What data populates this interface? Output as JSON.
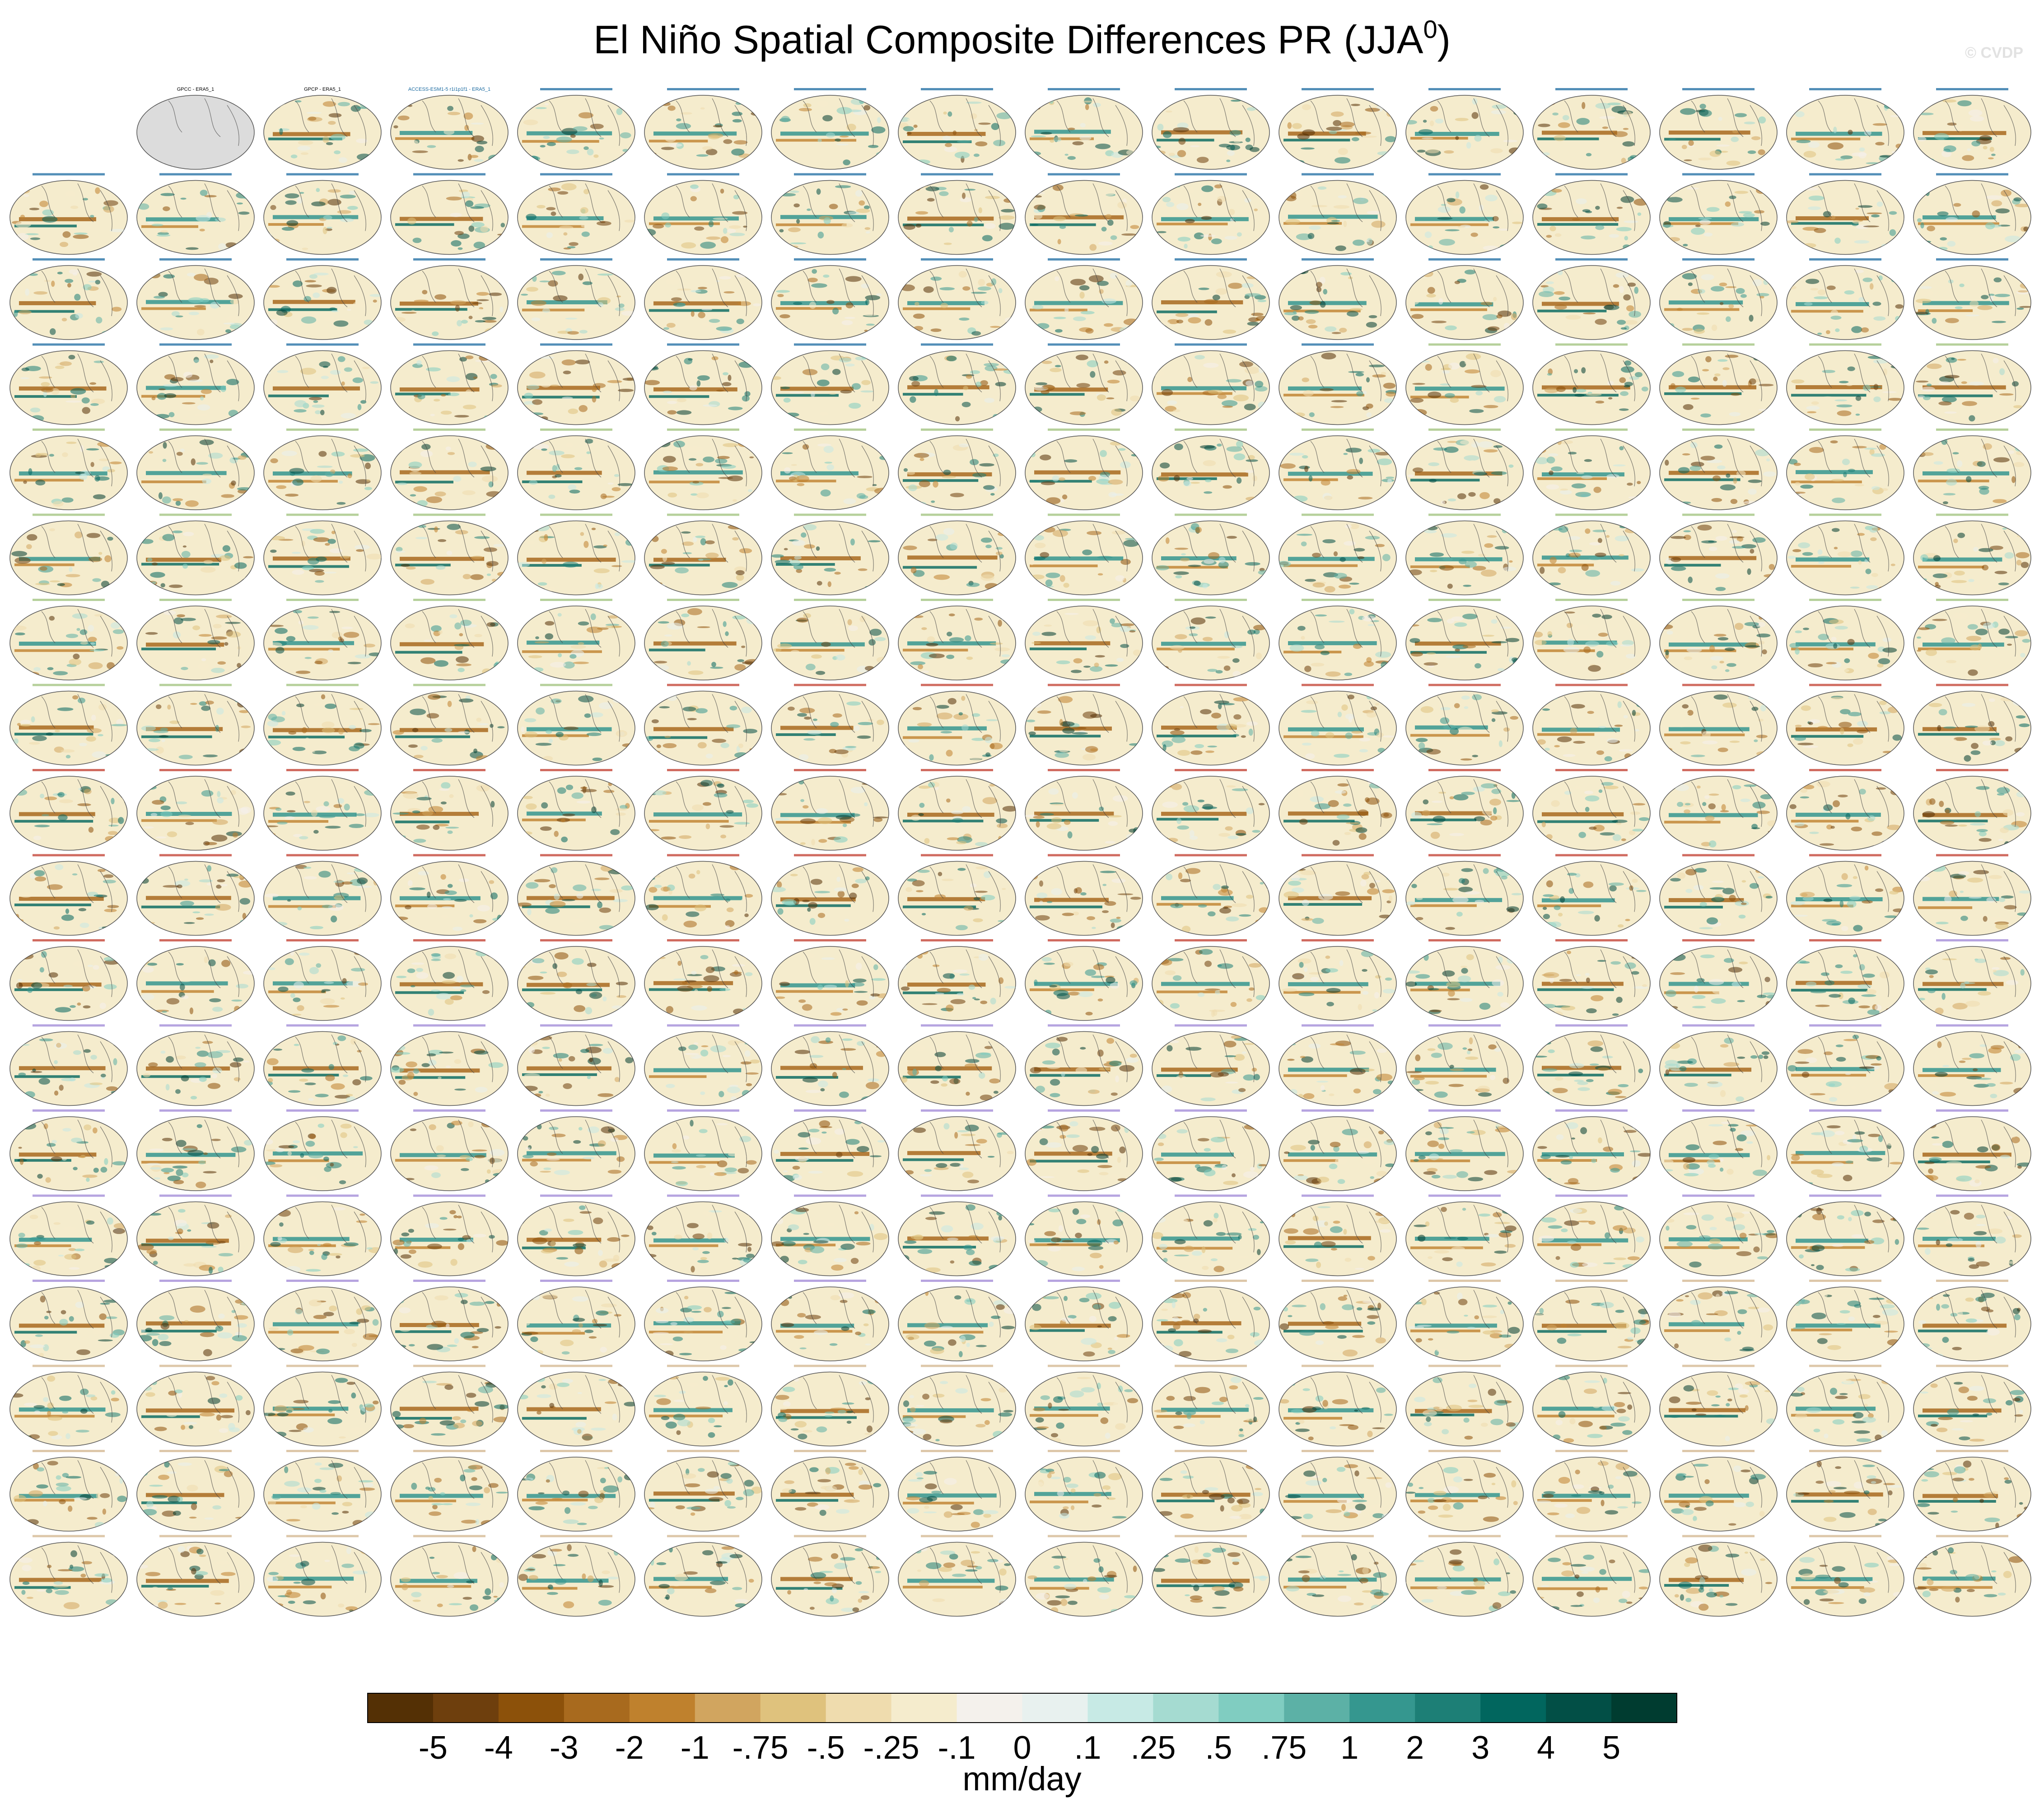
{
  "title": "El Niño Spatial Composite Differences PR (JJA",
  "title_superscript": "0",
  "title_close": ")",
  "watermark": "© CVDP",
  "panel_grid": {
    "rows": 18,
    "columns": 16
  },
  "panel_titles": {
    "observations": [
      "GPCC - ERA5_1",
      "GPCP - ERA5_1"
    ],
    "first_model": "ACCESS-ESM1-5 r1i1p1f1 - ERA5_1",
    "model_titles_note": "remaining panel titles are too small to read; drawn as colored text bars"
  },
  "model_colors": [
    "#1a6aa0",
    "#9dc07a",
    "#c0392b",
    "#9e86d6",
    "#d2b48c"
  ],
  "chart_data": {
    "type": "heatmap",
    "title": "El Niño Spatial Composite Differences PR (JJA0)",
    "colorbar": {
      "label": "mm/day",
      "tick_labels": [
        "-5",
        "-4",
        "-3",
        "-2",
        "-1",
        "-.75",
        "-.5",
        "-.25",
        "-.1",
        "0",
        ".1",
        ".25",
        ".5",
        ".75",
        "1",
        "2",
        "3",
        "4",
        "5"
      ],
      "colors": [
        "#543005",
        "#6e3f0d",
        "#8c510a",
        "#a86a1e",
        "#bf812d",
        "#d1a55f",
        "#dfc27d",
        "#efdcae",
        "#f5eccd",
        "#f4f1ec",
        "#e8f1ef",
        "#c7eae5",
        "#a5dbd1",
        "#80cdc1",
        "#5cb1a6",
        "#35978f",
        "#1d7f76",
        "#01665e",
        "#024f46",
        "#003c30"
      ]
    }
  }
}
